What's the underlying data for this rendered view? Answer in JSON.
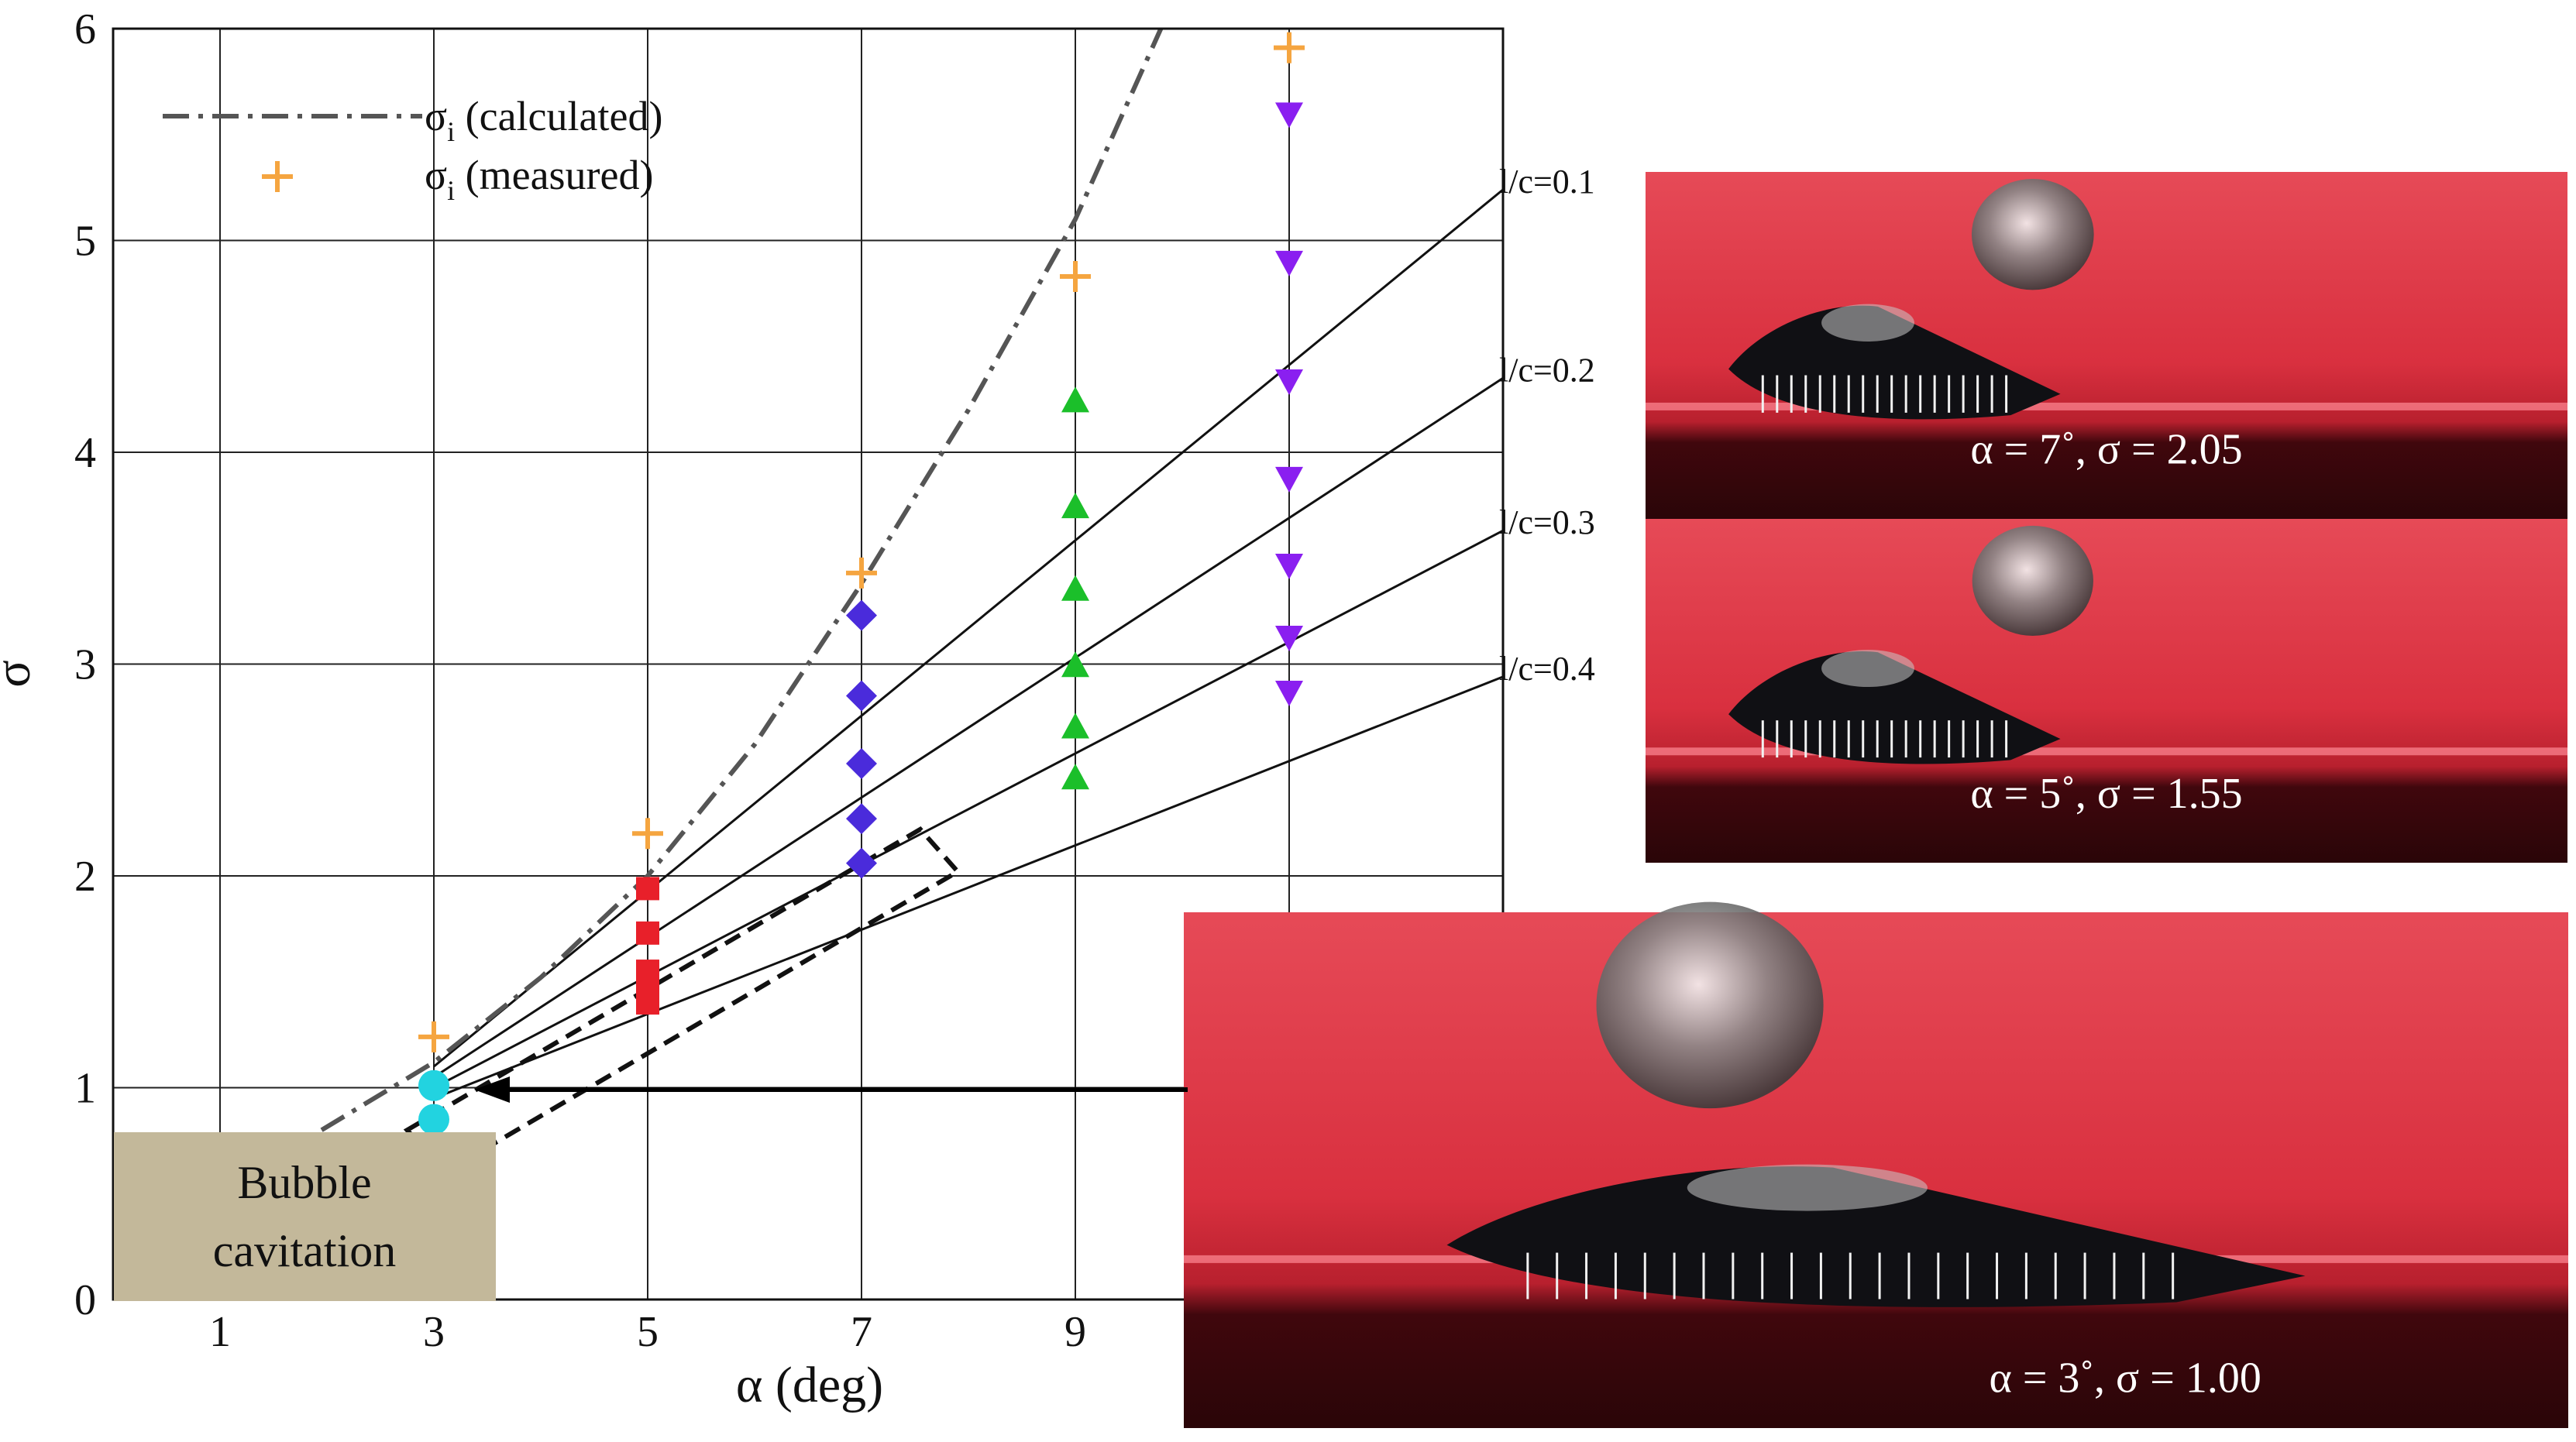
{
  "chart_data": {
    "type": "scatter",
    "xlabel": "α (deg)",
    "ylabel": "σ",
    "xlim": [
      0,
      13
    ],
    "ylim": [
      0,
      6
    ],
    "x_ticks": [
      1,
      3,
      5,
      7,
      9
    ],
    "y_ticks": [
      0,
      1,
      2,
      3,
      4,
      5,
      6
    ],
    "grid": true,
    "legend_position": "top-left",
    "legend": [
      {
        "label": "σ",
        "sub": "i",
        "suffix": " (calculated)",
        "style": "dash-dot",
        "color": "#555555"
      },
      {
        "label": "σ",
        "sub": "i",
        "suffix": " (measured)",
        "style": "plus",
        "color": "#f5a540"
      }
    ],
    "calculated_curve": {
      "x": [
        1.95,
        3,
        4,
        5,
        6,
        7,
        8,
        9,
        9.8
      ],
      "y": [
        0.8,
        1.12,
        1.52,
        2.0,
        2.62,
        3.38,
        4.2,
        5.1,
        6.0
      ]
    },
    "measured": {
      "x": [
        3,
        5,
        7,
        9,
        11
      ],
      "y": [
        1.24,
        2.2,
        3.43,
        4.83,
        5.91
      ]
    },
    "series": [
      {
        "marker": "circle",
        "color": "#22d3e0",
        "x": [
          3,
          3
        ],
        "y": [
          1.01,
          0.85
        ]
      },
      {
        "marker": "square",
        "color": "#e8202a",
        "x": [
          5,
          5,
          5,
          5,
          5
        ],
        "y": [
          1.94,
          1.73,
          1.55,
          1.48,
          1.4
        ]
      },
      {
        "marker": "diamond",
        "color": "#4a2bdb",
        "x": [
          7,
          7,
          7,
          7,
          7
        ],
        "y": [
          3.23,
          2.85,
          2.53,
          2.27,
          2.06
        ]
      },
      {
        "marker": "triangle-up",
        "color": "#1bbf2a",
        "x": [
          9,
          9,
          9,
          9,
          9,
          9
        ],
        "y": [
          4.24,
          3.74,
          3.35,
          2.99,
          2.7,
          2.46
        ]
      },
      {
        "marker": "triangle-down",
        "color": "#8a1ff0",
        "x": [
          11,
          11,
          11,
          11,
          11,
          11,
          11
        ],
        "y": [
          5.6,
          4.9,
          4.34,
          3.88,
          3.47,
          3.13,
          2.87
        ]
      }
    ],
    "reference_lines": [
      {
        "label": "l/c=0.1",
        "x": [
          3,
          13
        ],
        "y": [
          1.1,
          5.24
        ]
      },
      {
        "label": "l/c=0.2",
        "x": [
          3,
          13
        ],
        "y": [
          1.05,
          4.35
        ]
      },
      {
        "label": "l/c=0.3",
        "x": [
          3,
          13
        ],
        "y": [
          1.0,
          3.63
        ]
      },
      {
        "label": "l/c=0.4",
        "x": [
          3,
          13
        ],
        "y": [
          0.95,
          2.94
        ]
      }
    ],
    "annotation_box": "Bubble\ncavitation",
    "annotation_lines": [
      "Bubble",
      "cavitation"
    ]
  },
  "photos": [
    {
      "caption": "α = 7˚, σ = 2.05"
    },
    {
      "caption": "α = 5˚, σ = 1.55"
    },
    {
      "caption": "α = 3˚, σ = 1.00"
    }
  ],
  "colors": {
    "water": "#e0414f",
    "water_dark": "#6e0f1a",
    "hydrofoil": "#101014",
    "annotation_fill": "#c3b89a"
  }
}
